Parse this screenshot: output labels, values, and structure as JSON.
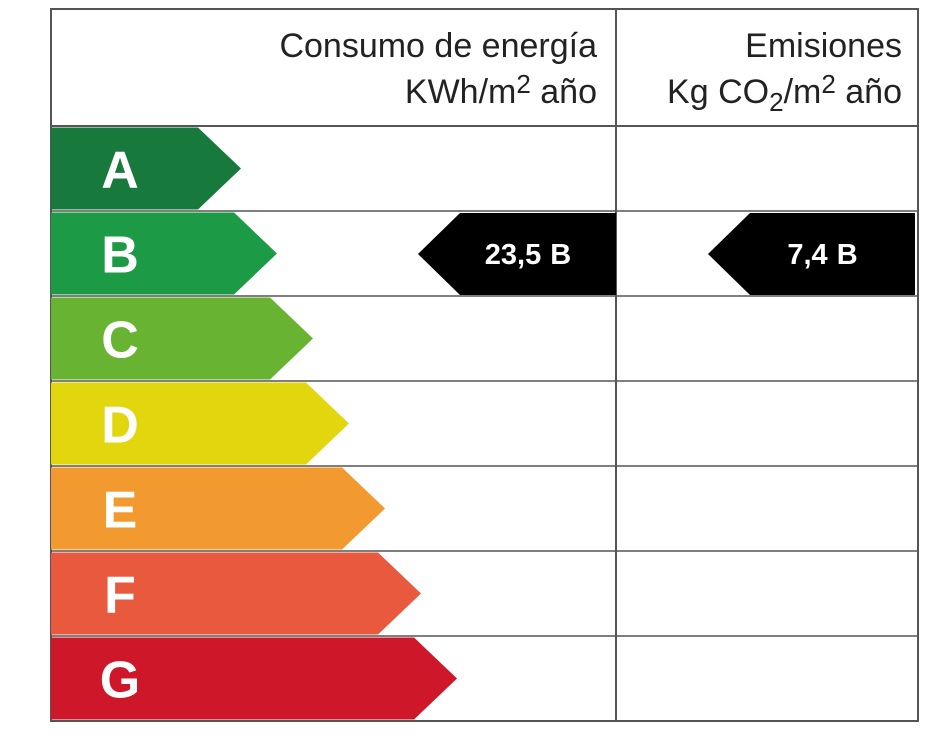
{
  "header": {
    "energy": {
      "line1": "Consumo de energía",
      "line2": [
        {
          "text": "KWh/m"
        },
        {
          "text": "2",
          "shift": "super"
        },
        {
          "text": " año"
        }
      ]
    },
    "emissions": {
      "line1": "Emisiones",
      "line2": [
        {
          "text": "Kg CO"
        },
        {
          "text": "2",
          "shift": "sub"
        },
        {
          "text": "/m"
        },
        {
          "text": "2",
          "shift": "super"
        },
        {
          "text": " año"
        }
      ]
    }
  },
  "ratings": [
    {
      "letter": "A",
      "color": "#17793b"
    },
    {
      "letter": "B",
      "color": "#1d9a45"
    },
    {
      "letter": "C",
      "color": "#69b332"
    },
    {
      "letter": "D",
      "color": "#e2d70f"
    },
    {
      "letter": "E",
      "color": "#f2992f"
    },
    {
      "letter": "F",
      "color": "#e9593e"
    },
    {
      "letter": "G",
      "color": "#cf172a"
    }
  ],
  "indicators": {
    "energy": {
      "value": "23,5",
      "rating": "B"
    },
    "emissions": {
      "value": "7,4",
      "rating": "B"
    }
  }
}
